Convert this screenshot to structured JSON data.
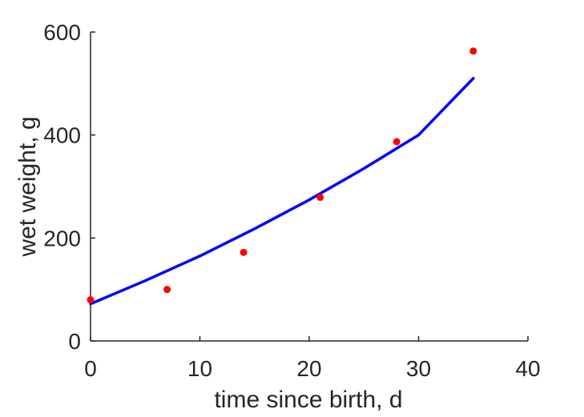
{
  "chart_data": {
    "type": "scatter",
    "title": "",
    "xlabel": "time since birth, d",
    "ylabel": "wet weight, g",
    "xlim": [
      0,
      40
    ],
    "ylim": [
      0,
      600
    ],
    "xticks": [
      0,
      10,
      20,
      30,
      40
    ],
    "xtick_labels": [
      "0",
      "10",
      "20",
      "30",
      "40"
    ],
    "yticks": [
      0,
      200,
      400,
      600
    ],
    "ytick_labels": [
      "0",
      "200",
      "400",
      "600"
    ],
    "grid": false,
    "legend": "none",
    "series": [
      {
        "type": "scatter",
        "color": "#ff0000",
        "x": [
          0,
          7,
          14,
          21,
          28,
          35
        ],
        "y": [
          80,
          100,
          172,
          279,
          387,
          563
        ]
      },
      {
        "type": "line",
        "color": "#0000ff",
        "x": [
          0,
          5,
          10,
          15,
          20,
          25,
          30,
          35
        ],
        "y": [
          72,
          117,
          165,
          218,
          274,
          335,
          400,
          510
        ]
      }
    ]
  }
}
